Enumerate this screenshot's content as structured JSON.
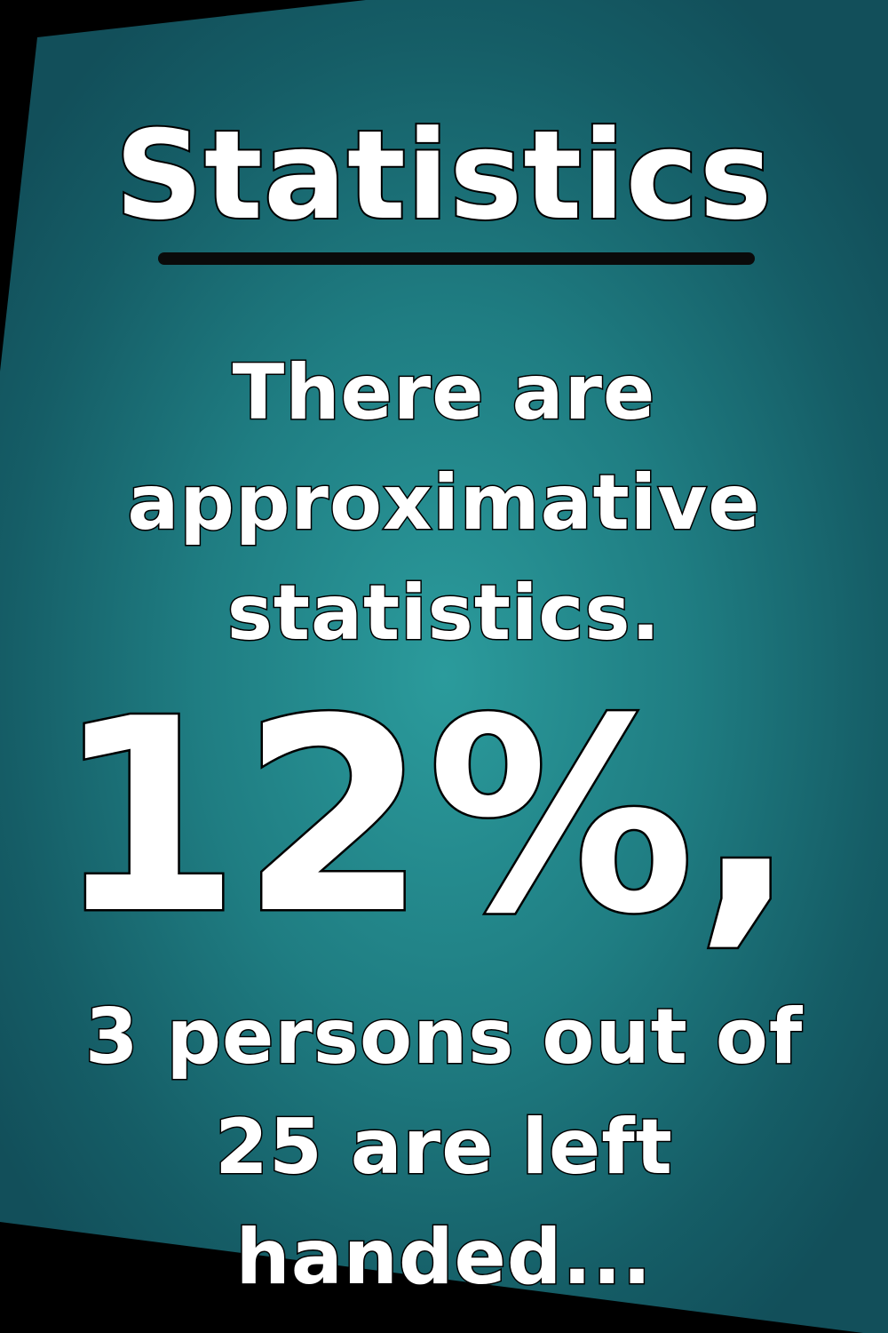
{
  "title": "Statistics",
  "intro": {
    "line1": "There are",
    "line2": "approximative",
    "line3": "statistics."
  },
  "highlight": "12%,",
  "detail": {
    "line1": "3 persons out of",
    "line2": "25 are left",
    "line3": "handed..."
  },
  "colors": {
    "background": "#000000",
    "panel_center": "#2b9b9c",
    "panel_edge": "#124f5a",
    "text": "#ffffff",
    "outline": "#000000"
  }
}
